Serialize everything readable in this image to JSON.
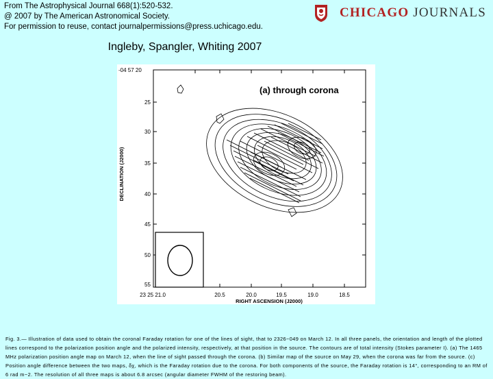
{
  "header": {
    "credit_lines": [
      "From The Astrophysical Journal 668(1):520-532.",
      "@ 2007 by The American Astronomical Society.",
      "For permission to reuse, contact journalpermissions@press.uchicago.edu."
    ],
    "logo_word1": "CHICAGO",
    "logo_word2": "JOURNALS"
  },
  "citation": "Ingleby, Spangler, Whiting 2007",
  "figure": {
    "panel_title": "(a) through corona",
    "ylabel": "DECLINATION (J2000)",
    "xlabel": "RIGHT ASCENSION (J2000)",
    "y_ticks": [
      "-04 57 20",
      "25",
      "30",
      "35",
      "40",
      "45",
      "50",
      "55"
    ],
    "x_ticks": [
      "23 25 21.0",
      "20.5",
      "20.0",
      "19.5",
      "19.0",
      "18.5"
    ]
  },
  "caption": "Fig. 3.— Illustration of data used to obtain the coronal Faraday rotation for one of the lines of sight, that to 2326−049 on March 12. In all three panels, the orientation and length of the plotted lines correspond to the polarization position angle and the polarized intensity, respectively, at that position in the source. The contours are of total intensity (Stokes parameter I). (a) The 1465 MHz polarization position angle map on March 12, when the line of sight passed through the corona. (b) Similar map of the source on May 29, when the corona was far from the source. (c) Position angle difference between the two maps, δχ, which is the Faraday rotation due to the corona. For both components of the source, the Faraday rotation is 14°, corresponding to an RM of 6 rad m−2. The resolution of all three maps is about 6.8 arcsec (angular diameter FWHM of the restoring beam).",
  "colors": {
    "background": "#ccffff",
    "logo_red": "#b22222",
    "logo_gray": "#333333"
  }
}
